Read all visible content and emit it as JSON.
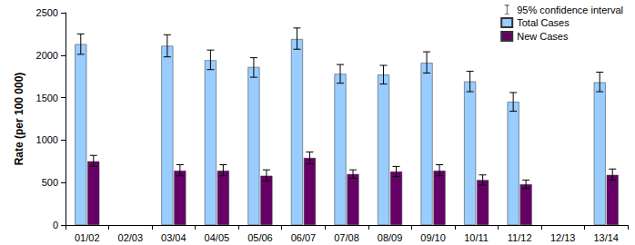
{
  "chart_data": {
    "type": "bar",
    "ylabel": "Rate (per 100 000)",
    "categories": [
      "01/02",
      "02/03",
      "03/04",
      "04/05",
      "05/06",
      "06/07",
      "07/08",
      "08/09",
      "09/10",
      "10/11",
      "11/12",
      "12/13",
      "13/14"
    ],
    "ylim": [
      0,
      2500
    ],
    "yticks": [
      0,
      500,
      1000,
      1500,
      2000,
      2500
    ],
    "grid": false,
    "legend": "upper right",
    "error_bar_label": "95% confidence interval",
    "series": [
      {
        "name": "Total Cases",
        "color": "#99ccff",
        "values": [
          2130,
          null,
          2110,
          1940,
          1860,
          2190,
          1780,
          1770,
          1910,
          1690,
          1450,
          null,
          1680
        ],
        "error_low": [
          2010,
          null,
          1980,
          1830,
          1740,
          2070,
          1670,
          1660,
          1790,
          1570,
          1340,
          null,
          1570
        ],
        "error_high": [
          2250,
          null,
          2240,
          2060,
          1970,
          2320,
          1890,
          1880,
          2040,
          1810,
          1560,
          null,
          1800
        ]
      },
      {
        "name": "New Cases",
        "color": "#660066",
        "values": [
          750,
          null,
          640,
          640,
          580,
          790,
          600,
          630,
          640,
          530,
          480,
          null,
          590
        ],
        "error_low": [
          690,
          null,
          580,
          580,
          520,
          720,
          550,
          570,
          580,
          470,
          430,
          null,
          530
        ],
        "error_high": [
          820,
          null,
          710,
          710,
          650,
          860,
          650,
          690,
          710,
          590,
          530,
          null,
          660
        ]
      }
    ]
  }
}
